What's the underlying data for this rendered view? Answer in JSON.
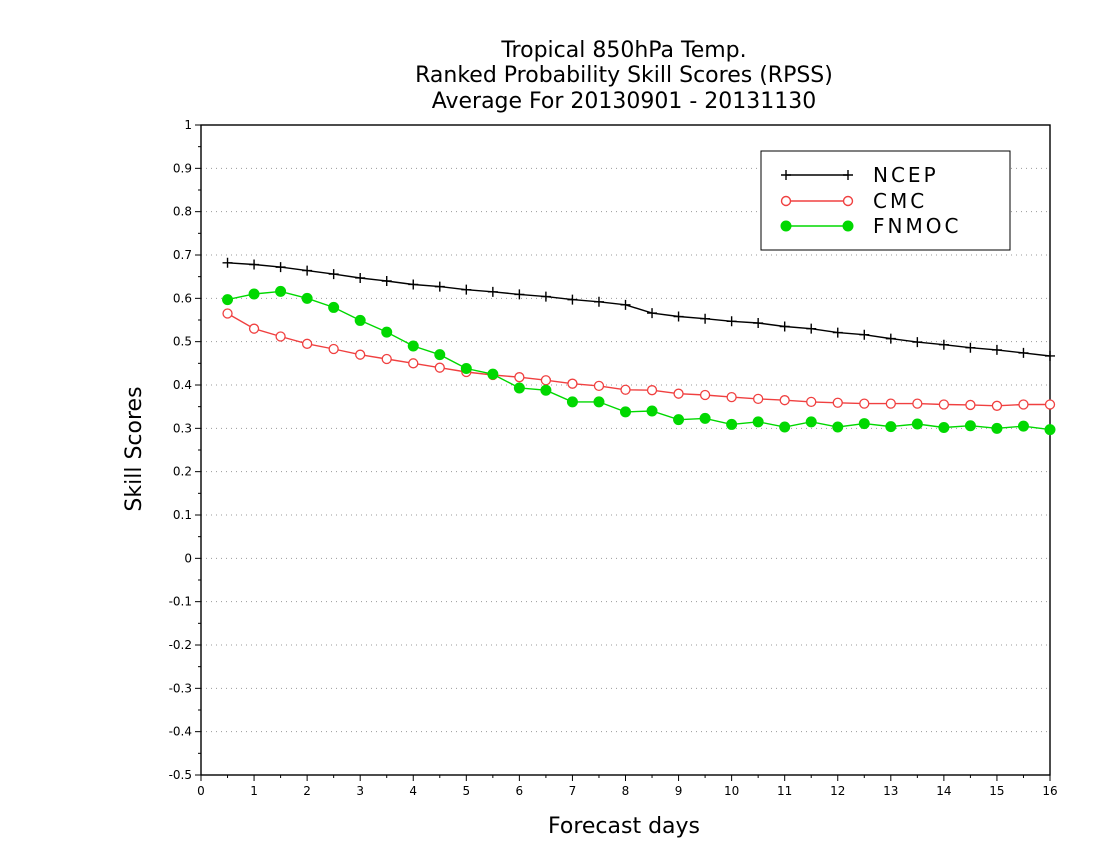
{
  "chart_data": {
    "type": "line",
    "title_lines": [
      "Tropical 850hPa Temp.",
      "Ranked Probability Skill Scores (RPSS)",
      "Average For 20130901 - 20131130"
    ],
    "xlabel": "Forecast days",
    "ylabel": "Skill Scores",
    "xlim": [
      0,
      16
    ],
    "ylim": [
      -0.5,
      1
    ],
    "xticks": [
      "0",
      "1",
      "2",
      "3",
      "4",
      "5",
      "6",
      "7",
      "8",
      "9",
      "10",
      "11",
      "12",
      "13",
      "14",
      "15",
      "16"
    ],
    "yticks": [
      "-0.5",
      "-0.4",
      "-0.3",
      "-0.2",
      "-0.1",
      "0",
      "0.1",
      "0.2",
      "0.3",
      "0.4",
      "0.5",
      "0.6",
      "0.7",
      "0.8",
      "0.9",
      "1"
    ],
    "grid": "horizontal dotted",
    "legend_position": "top-right",
    "x": [
      0.5,
      1,
      1.5,
      2,
      2.5,
      3,
      3.5,
      4,
      4.5,
      5,
      5.5,
      6,
      6.5,
      7,
      7.5,
      8,
      8.5,
      9,
      9.5,
      10,
      10.5,
      11,
      11.5,
      12,
      12.5,
      13,
      13.5,
      14,
      14.5,
      15,
      15.5,
      16
    ],
    "series": [
      {
        "name": "NCEP",
        "color": "#000000",
        "marker": "plus",
        "values": [
          0.682,
          0.678,
          0.672,
          0.664,
          0.656,
          0.647,
          0.64,
          0.632,
          0.627,
          0.62,
          0.615,
          0.609,
          0.604,
          0.597,
          0.592,
          0.585,
          0.566,
          0.558,
          0.553,
          0.547,
          0.543,
          0.535,
          0.53,
          0.521,
          0.516,
          0.507,
          0.499,
          0.493,
          0.486,
          0.481,
          0.474,
          0.467
        ]
      },
      {
        "name": "CMC",
        "color": "#f04040",
        "marker": "open-circle",
        "values": [
          0.565,
          0.53,
          0.512,
          0.495,
          0.483,
          0.47,
          0.46,
          0.45,
          0.44,
          0.43,
          0.423,
          0.418,
          0.411,
          0.403,
          0.398,
          0.389,
          0.388,
          0.38,
          0.377,
          0.372,
          0.368,
          0.365,
          0.361,
          0.359,
          0.357,
          0.357,
          0.357,
          0.355,
          0.354,
          0.352,
          0.355,
          0.355
        ]
      },
      {
        "name": "FNMOC",
        "color": "#00d800",
        "marker": "filled-circle",
        "values": [
          0.597,
          0.61,
          0.616,
          0.6,
          0.579,
          0.549,
          0.522,
          0.49,
          0.47,
          0.438,
          0.425,
          0.393,
          0.388,
          0.361,
          0.361,
          0.338,
          0.34,
          0.32,
          0.323,
          0.309,
          0.315,
          0.303,
          0.315,
          0.303,
          0.311,
          0.304,
          0.31,
          0.302,
          0.306,
          0.3,
          0.305,
          0.297
        ]
      }
    ]
  }
}
